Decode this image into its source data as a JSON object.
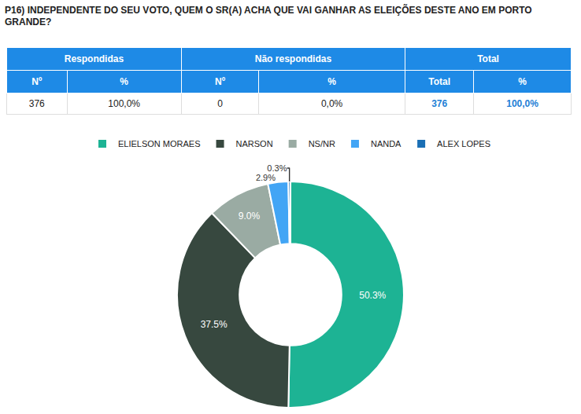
{
  "title": "P16) INDEPENDENTE DO SEU VOTO, QUEM O SR(A) ACHA QUE VAI GANHAR AS ELEIÇÕES DESTE ANO EM PORTO GRANDE?",
  "table": {
    "groups": [
      "Respondidas",
      "Não respondidas",
      "Total"
    ],
    "columns": [
      "Nº",
      "%",
      "Nº",
      "%",
      "Total",
      "%"
    ],
    "rows": [
      [
        "376",
        "100,0%",
        "0",
        "0,0%",
        "376",
        "100,0%"
      ]
    ]
  },
  "chart_data": {
    "type": "pie",
    "categories": [
      "ELIELSON MORAES",
      "NARSON",
      "NS/NR",
      "NANDA",
      "ALEX LOPES"
    ],
    "values": [
      50.3,
      37.5,
      9.0,
      2.9,
      0.3
    ],
    "value_labels": [
      "50.3%",
      "37.5%",
      "9.0%",
      "2.9%",
      "0.3%"
    ],
    "colors": [
      "#1db394",
      "#37483f",
      "#9aaba3",
      "#42a5f5",
      "#1a6fb5"
    ],
    "data_labels": true,
    "legend": "top"
  }
}
